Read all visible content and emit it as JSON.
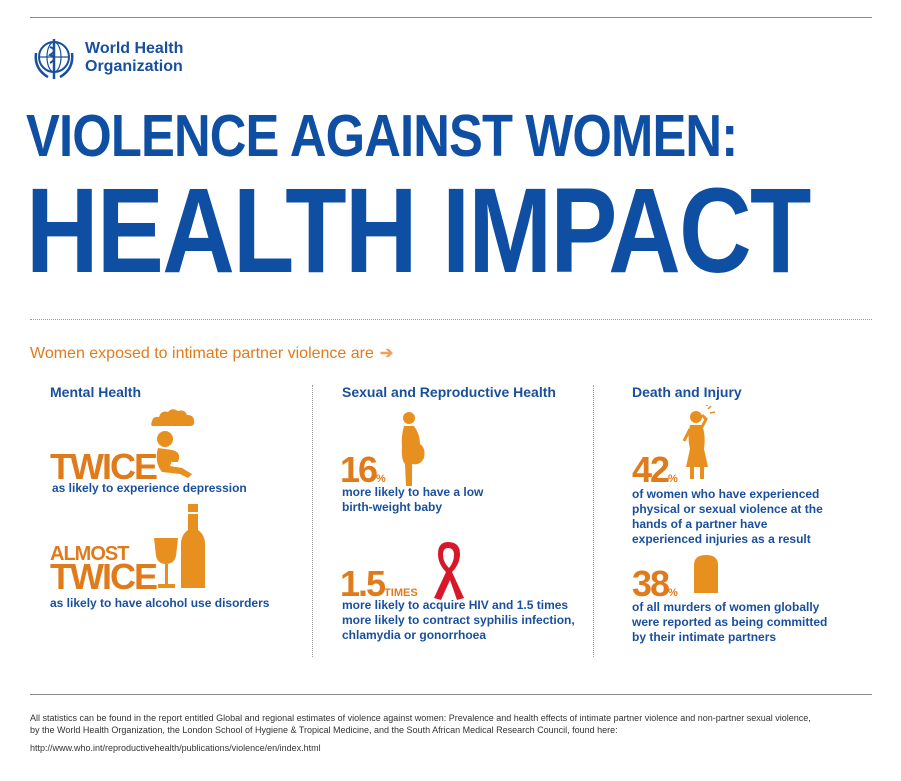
{
  "organization": {
    "line1": "World Health",
    "line2": "Organization",
    "logo_icon": "who-emblem-icon"
  },
  "title": {
    "line1": "VIOLENCE AGAINST WOMEN:",
    "line2": "HEALTH IMPACT"
  },
  "intro": {
    "text": "Women exposed to intimate partner violence are",
    "arrow": "➔"
  },
  "colors": {
    "blue": "#1a4f9c",
    "orange": "#e07b1c"
  },
  "columns": {
    "mental": {
      "heading": "Mental Health",
      "stat1": {
        "big": "TWICE",
        "desc": "as likely to experience depression",
        "icon": "depressed-person-icon"
      },
      "stat2": {
        "small": "ALMOST",
        "big": "TWICE",
        "desc": "as likely to have alcohol use disorders",
        "icon": "wine-bottle-glass-icon"
      }
    },
    "sexual": {
      "heading": "Sexual and Reproductive Health",
      "stat1": {
        "big": "16",
        "unit": "%",
        "desc1": "more likely to have a low",
        "desc2": "birth-weight baby",
        "icon": "pregnant-woman-icon"
      },
      "stat2": {
        "big": "1.5",
        "unit": "TIMES",
        "desc1": "more likely to acquire HIV and 1.5 times",
        "desc2": "more likely to contract syphilis infection,",
        "desc3": "chlamydia or gonorrhoea",
        "icon": "red-ribbon-icon"
      }
    },
    "death": {
      "heading": "Death and Injury",
      "stat1": {
        "big": "42",
        "unit": "%",
        "desc1": "of women who have experienced",
        "desc2": "physical or sexual violence at the",
        "desc3": "hands of a partner have",
        "desc4": "experienced injuries as a result",
        "icon": "injured-woman-icon"
      },
      "stat2": {
        "big": "38",
        "unit": "%",
        "desc1": "of all murders of women globally",
        "desc2": "were reported as being committed",
        "desc3": "by their intimate partners",
        "icon": "tombstone-icon"
      }
    }
  },
  "footer": {
    "line1": "All statistics can be found in the report entitled Global and regional estimates of violence against women: Prevalence and health effects of intimate partner violence and non-partner sexual violence,",
    "line2": "by the World Health Organization, the London School of Hygiene & Tropical Medicine, and the South African Medical Research Council, found here:",
    "url": "http://www.who.int/reproductivehealth/publications/violence/en/index.html"
  }
}
